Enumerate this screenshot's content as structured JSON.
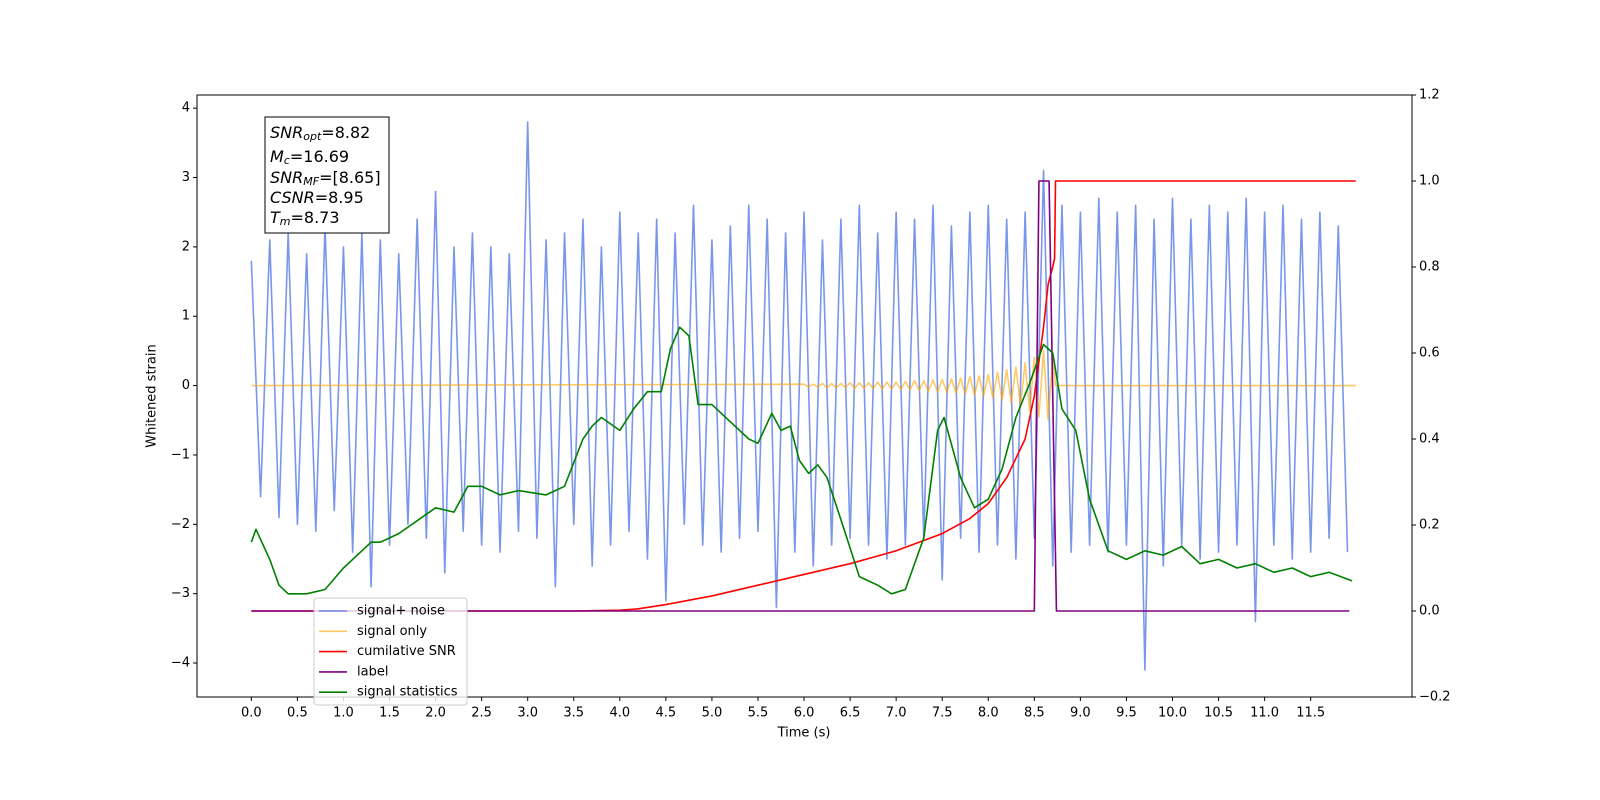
{
  "chart_data": {
    "type": "line",
    "xlabel": "Time (s)",
    "ylabel": "Whitened strain",
    "xlim": [
      -0.59,
      12.6
    ],
    "ylim": [
      -4.49,
      4.19
    ],
    "y2lim": [
      -0.2,
      1.2
    ],
    "xticks": [
      {
        "value": 0,
        "label": "0.0"
      },
      0.5,
      {
        "value": 1,
        "label": "1.0"
      },
      1.5,
      {
        "value": 2,
        "label": "2.0"
      },
      2.5,
      {
        "value": 3,
        "label": "3.0"
      },
      3.5,
      {
        "value": 4,
        "label": "4.0"
      },
      4.5,
      {
        "value": 5,
        "label": "5.0"
      },
      5.5,
      {
        "value": 6,
        "label": "6.0"
      },
      6.5,
      {
        "value": 7,
        "label": "7.0"
      },
      7.5,
      {
        "value": 8,
        "label": "8.0"
      },
      8.5,
      {
        "value": 9,
        "label": "9.0"
      },
      9.5,
      {
        "value": 10,
        "label": "10.0"
      },
      10.5,
      {
        "value": 11,
        "label": "11.0"
      },
      11.5
    ],
    "yticks": [
      {
        "value": -4,
        "label": "−4"
      },
      {
        "value": -3,
        "label": "−3"
      },
      {
        "value": -2,
        "label": "−2"
      },
      {
        "value": -1,
        "label": "−1"
      },
      0,
      1,
      2,
      3,
      4
    ],
    "y2ticks": [
      {
        "value": -0.2,
        "label": "−0.2"
      },
      {
        "value": 0,
        "label": "0.0"
      },
      0.2,
      0.4,
      0.6,
      0.8,
      {
        "value": 1,
        "label": "1.0"
      },
      1.2
    ],
    "legend_loc": "lower left",
    "annotation": [
      {
        "base": "SNR",
        "sub": "opt",
        "rest": "=8.82"
      },
      {
        "base": "M",
        "sub": "c",
        "rest": "=16.69"
      },
      {
        "base": "SNR",
        "sub": "MF",
        "rest": "=[8.65]"
      },
      {
        "base": "CSNR",
        "rest": "=8.95"
      },
      {
        "base": "T",
        "sub": "m",
        "rest": "=8.73"
      }
    ],
    "series": [
      {
        "name": "signal+ noise",
        "color": "#4169e1",
        "alpha": 0.7,
        "axis": "y",
        "x": [
          0.0,
          0.1,
          0.2,
          0.3,
          0.4,
          0.5,
          0.6,
          0.7,
          0.8,
          0.9,
          1.0,
          1.1,
          1.2,
          1.3,
          1.4,
          1.5,
          1.6,
          1.7,
          1.8,
          1.9,
          2.0,
          2.1,
          2.2,
          2.3,
          2.4,
          2.5,
          2.6,
          2.7,
          2.8,
          2.9,
          3.0,
          3.1,
          3.2,
          3.3,
          3.4,
          3.5,
          3.6,
          3.7,
          3.8,
          3.9,
          4.0,
          4.1,
          4.2,
          4.3,
          4.4,
          4.5,
          4.6,
          4.7,
          4.8,
          4.9,
          5.0,
          5.1,
          5.2,
          5.3,
          5.4,
          5.5,
          5.6,
          5.7,
          5.8,
          5.9,
          6.0,
          6.1,
          6.2,
          6.3,
          6.4,
          6.5,
          6.6,
          6.7,
          6.8,
          6.9,
          7.0,
          7.1,
          7.2,
          7.3,
          7.4,
          7.5,
          7.6,
          7.7,
          7.8,
          7.9,
          8.0,
          8.1,
          8.2,
          8.3,
          8.4,
          8.5,
          8.6,
          8.7,
          8.8,
          8.9,
          9.0,
          9.1,
          9.2,
          9.3,
          9.4,
          9.5,
          9.6,
          9.7,
          9.8,
          9.9,
          10.0,
          10.1,
          10.2,
          10.3,
          10.4,
          10.5,
          10.6,
          10.7,
          10.8,
          10.9,
          11.0,
          11.1,
          11.2,
          11.3,
          11.4,
          11.5,
          11.6,
          11.7,
          11.8,
          11.9
        ],
        "values": [
          1.8,
          -1.6,
          2.1,
          -1.9,
          2.2,
          -2.0,
          1.9,
          -2.1,
          2.3,
          -1.8,
          2.0,
          -2.4,
          2.2,
          -2.9,
          2.1,
          -2.3,
          1.9,
          -2.0,
          2.4,
          -2.2,
          2.8,
          -2.7,
          2.0,
          -2.1,
          2.2,
          -2.3,
          2.0,
          -2.4,
          1.9,
          -2.1,
          3.8,
          -2.2,
          2.1,
          -2.9,
          2.2,
          -2.0,
          2.4,
          -2.6,
          2.0,
          -2.3,
          2.5,
          -2.1,
          2.2,
          -2.5,
          2.4,
          -3.1,
          2.2,
          -2.0,
          2.6,
          -2.3,
          2.1,
          -2.4,
          2.3,
          -2.2,
          2.6,
          -2.1,
          2.4,
          -3.2,
          2.2,
          -2.4,
          2.5,
          -2.6,
          2.1,
          -2.3,
          2.4,
          -2.2,
          2.6,
          -2.3,
          2.2,
          -2.5,
          2.5,
          -2.3,
          2.4,
          -2.2,
          2.6,
          -2.8,
          2.3,
          -2.2,
          2.5,
          -2.4,
          2.6,
          -2.3,
          2.4,
          -2.5,
          2.5,
          -2.2,
          3.1,
          -2.6,
          2.6,
          -2.4,
          2.5,
          -2.3,
          2.7,
          -2.4,
          2.5,
          -2.3,
          2.6,
          -4.1,
          2.4,
          -2.6,
          2.7,
          -2.3,
          2.4,
          -2.5,
          2.6,
          -2.4,
          2.5,
          -2.3,
          2.7,
          -3.4,
          2.5,
          -2.3,
          2.6,
          -2.5,
          2.4,
          -2.4,
          2.5,
          -2.2,
          2.3,
          -2.4
        ]
      },
      {
        "name": "signal only",
        "color": "#ffa500",
        "alpha": 0.6,
        "axis": "y",
        "x": [
          0.0,
          6.0,
          6.05,
          6.1,
          6.15,
          6.2,
          6.25,
          6.3,
          6.35,
          6.4,
          6.45,
          6.5,
          6.55,
          6.6,
          6.65,
          6.7,
          6.75,
          6.8,
          6.85,
          6.9,
          6.95,
          7.0,
          7.05,
          7.1,
          7.15,
          7.2,
          7.25,
          7.3,
          7.35,
          7.4,
          7.45,
          7.5,
          7.55,
          7.6,
          7.65,
          7.7,
          7.75,
          7.8,
          7.85,
          7.9,
          7.95,
          8.0,
          8.05,
          8.1,
          8.15,
          8.2,
          8.25,
          8.3,
          8.35,
          8.4,
          8.45,
          8.5,
          8.55,
          8.6,
          8.65,
          8.7,
          8.73,
          11.99
        ],
        "values": [
          0,
          0.02,
          -0.02,
          0.02,
          -0.02,
          0.03,
          -0.03,
          0.03,
          -0.03,
          0.03,
          -0.03,
          0.04,
          -0.04,
          0.04,
          -0.04,
          0.04,
          -0.04,
          0.05,
          -0.05,
          0.05,
          -0.05,
          0.05,
          -0.06,
          0.06,
          -0.06,
          0.07,
          -0.07,
          0.07,
          -0.08,
          0.08,
          -0.09,
          0.09,
          -0.1,
          0.1,
          -0.11,
          0.11,
          -0.12,
          0.13,
          -0.14,
          0.14,
          -0.15,
          0.16,
          -0.18,
          0.19,
          -0.21,
          0.23,
          -0.25,
          0.27,
          -0.3,
          0.33,
          -0.37,
          0.41,
          -0.45,
          0.5,
          -0.5,
          0.4,
          0,
          0
        ]
      },
      {
        "name": "cumilative SNR",
        "color": "#ff0000",
        "alpha": 1,
        "axis": "y2",
        "x": [
          0.0,
          3.5,
          4.0,
          4.2,
          4.5,
          5.0,
          5.5,
          6.0,
          6.5,
          7.0,
          7.5,
          7.8,
          8.0,
          8.2,
          8.4,
          8.5,
          8.6,
          8.65,
          8.7,
          8.72,
          8.73,
          11.99
        ],
        "values": [
          0,
          0,
          0.002,
          0.005,
          0.015,
          0.035,
          0.06,
          0.085,
          0.11,
          0.14,
          0.18,
          0.215,
          0.25,
          0.31,
          0.4,
          0.5,
          0.66,
          0.76,
          0.8,
          0.82,
          1.0,
          1.0
        ]
      },
      {
        "name": "label",
        "color": "#800080",
        "alpha": 1,
        "axis": "y2",
        "x": [
          0.0,
          8.5,
          8.55,
          8.66,
          8.74,
          11.92
        ],
        "values": [
          0,
          0,
          1,
          1,
          0,
          0
        ]
      },
      {
        "name": "signal statistics",
        "color": "#008000",
        "alpha": 1,
        "axis": "y2",
        "x": [
          0.0,
          0.05,
          0.2,
          0.3,
          0.4,
          0.6,
          0.8,
          1.0,
          1.2,
          1.3,
          1.4,
          1.6,
          1.8,
          2.0,
          2.2,
          2.35,
          2.5,
          2.7,
          2.9,
          3.2,
          3.4,
          3.6,
          3.7,
          3.8,
          4.0,
          4.15,
          4.3,
          4.45,
          4.55,
          4.65,
          4.75,
          4.85,
          5.0,
          5.2,
          5.4,
          5.5,
          5.65,
          5.75,
          5.85,
          5.95,
          6.05,
          6.15,
          6.25,
          6.45,
          6.6,
          6.8,
          6.95,
          7.1,
          7.3,
          7.45,
          7.52,
          7.7,
          7.85,
          8.0,
          8.15,
          8.3,
          8.45,
          8.6,
          8.7,
          8.8,
          8.95,
          9.1,
          9.3,
          9.5,
          9.7,
          9.9,
          10.1,
          10.3,
          10.5,
          10.7,
          10.9,
          11.1,
          11.3,
          11.5,
          11.7,
          11.95
        ],
        "values": [
          0.16,
          0.19,
          0.12,
          0.06,
          0.04,
          0.04,
          0.05,
          0.1,
          0.14,
          0.16,
          0.16,
          0.18,
          0.21,
          0.24,
          0.23,
          0.29,
          0.29,
          0.27,
          0.28,
          0.27,
          0.29,
          0.4,
          0.43,
          0.45,
          0.42,
          0.47,
          0.51,
          0.51,
          0.61,
          0.66,
          0.64,
          0.48,
          0.48,
          0.44,
          0.4,
          0.39,
          0.46,
          0.42,
          0.43,
          0.35,
          0.32,
          0.34,
          0.31,
          0.18,
          0.08,
          0.06,
          0.04,
          0.05,
          0.17,
          0.42,
          0.45,
          0.31,
          0.24,
          0.26,
          0.33,
          0.45,
          0.53,
          0.62,
          0.6,
          0.47,
          0.42,
          0.26,
          0.14,
          0.12,
          0.14,
          0.13,
          0.15,
          0.11,
          0.12,
          0.1,
          0.11,
          0.09,
          0.1,
          0.08,
          0.09,
          0.07
        ]
      }
    ]
  }
}
